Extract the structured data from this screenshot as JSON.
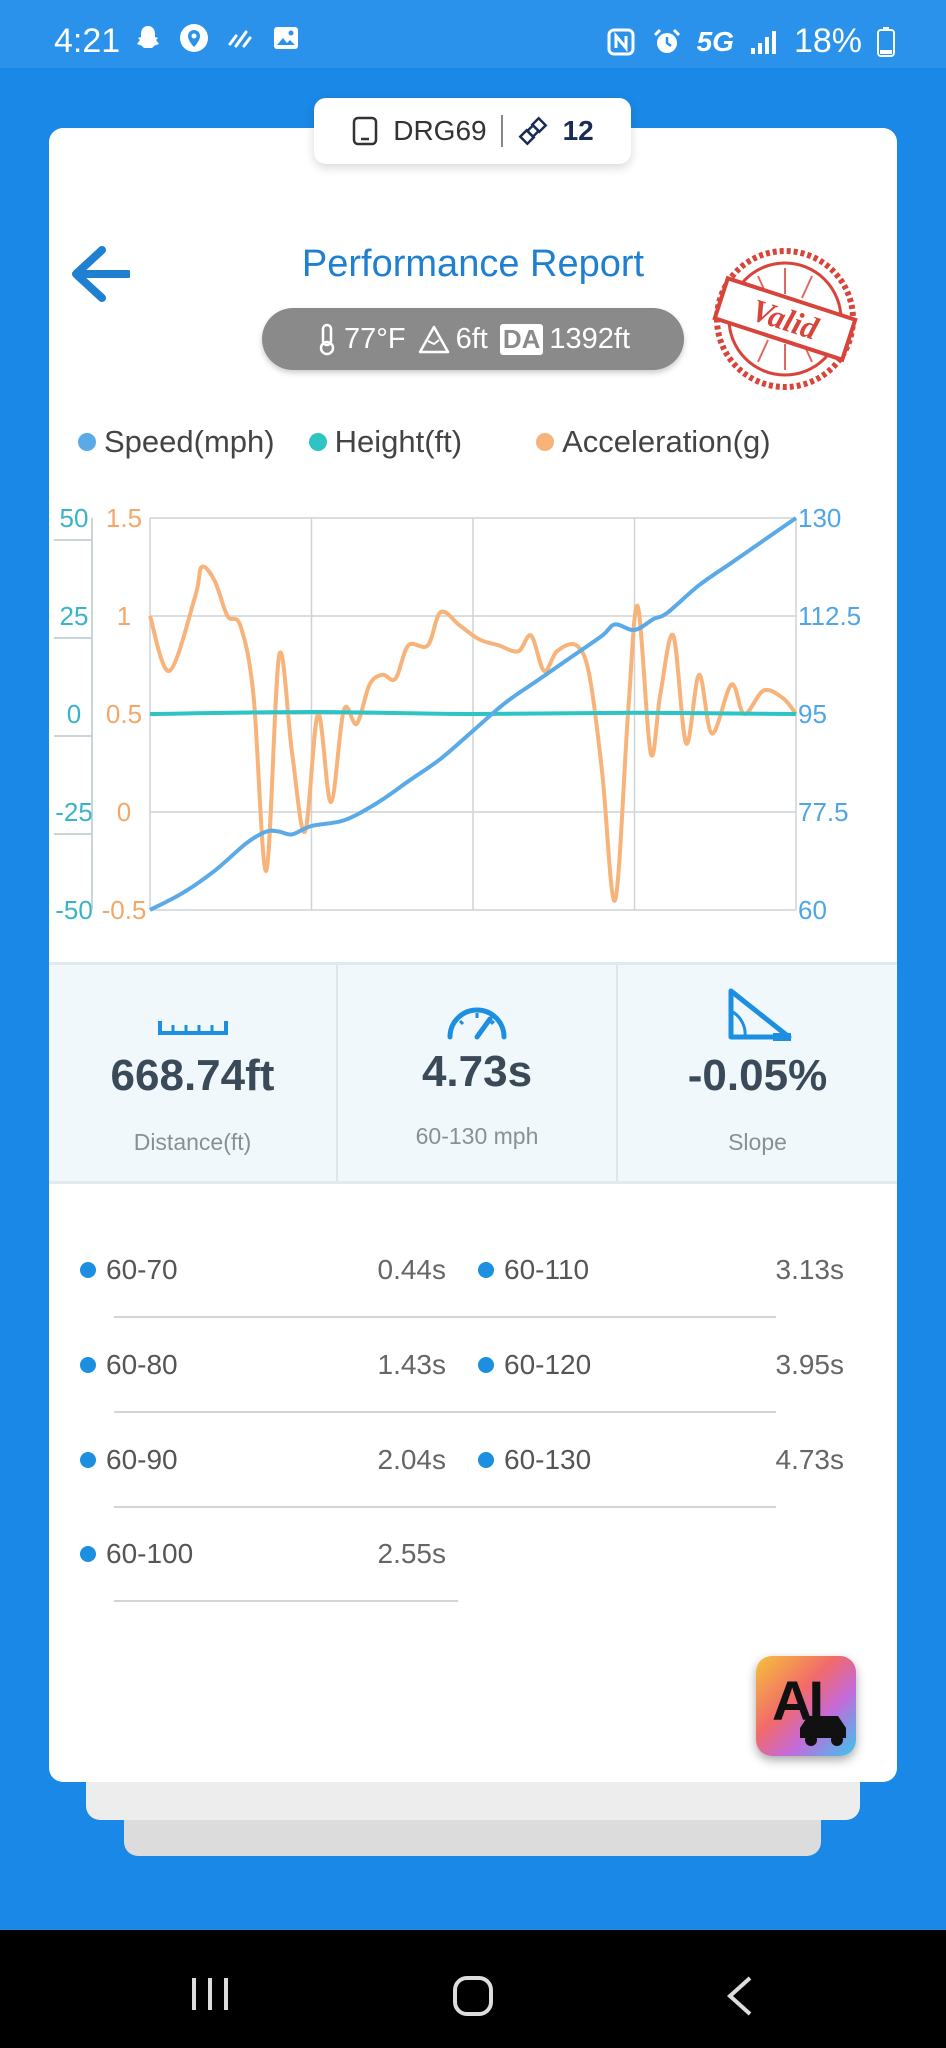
{
  "status_bar": {
    "time": "4:21",
    "network": "5G",
    "battery": "18%"
  },
  "device": {
    "name": "DRG69",
    "satellites": "12"
  },
  "header": {
    "title": "Performance Report",
    "stamp_text": "Valid"
  },
  "conditions": {
    "temperature": "77°F",
    "elevation": "6ft",
    "da_label": "DA",
    "density_altitude": "1392ft"
  },
  "legend": {
    "speed": "Speed(mph)",
    "height": "Height(ft)",
    "acceleration": "Acceleration(g)"
  },
  "colors": {
    "speed": "#5aaae8",
    "height": "#2ec4c4",
    "acceleration": "#f7b37a",
    "accent": "#1f7fd1"
  },
  "chart_data": {
    "type": "line",
    "axes": {
      "height_ticks": [
        "50",
        "25",
        "0",
        "-25",
        "-50"
      ],
      "accel_ticks": [
        "1.5",
        "1",
        "0.5",
        "0",
        "-0.5"
      ],
      "speed_ticks": [
        "130",
        "112.5",
        "95",
        "77.5",
        "60"
      ],
      "height_range": [
        -50,
        50
      ],
      "accel_range": [
        -0.5,
        1.5
      ],
      "speed_range": [
        60,
        130
      ]
    },
    "grid": true,
    "series": [
      {
        "name": "Speed(mph)",
        "axis": "speed",
        "values": [
          [
            0,
            60
          ],
          [
            0.05,
            63
          ],
          [
            0.1,
            67
          ],
          [
            0.15,
            72
          ],
          [
            0.18,
            74
          ],
          [
            0.2,
            74
          ],
          [
            0.22,
            73.5
          ],
          [
            0.25,
            75
          ],
          [
            0.3,
            76
          ],
          [
            0.35,
            79
          ],
          [
            0.4,
            83
          ],
          [
            0.45,
            87
          ],
          [
            0.5,
            92
          ],
          [
            0.55,
            97
          ],
          [
            0.6,
            101
          ],
          [
            0.65,
            105
          ],
          [
            0.7,
            109
          ],
          [
            0.72,
            111
          ],
          [
            0.75,
            110
          ],
          [
            0.78,
            112
          ],
          [
            0.8,
            113
          ],
          [
            0.85,
            118
          ],
          [
            0.9,
            122
          ],
          [
            0.95,
            126
          ],
          [
            1,
            130
          ]
        ]
      },
      {
        "name": "Height(ft)",
        "axis": "height",
        "values": [
          [
            0,
            0
          ],
          [
            0.25,
            0.5
          ],
          [
            0.5,
            0
          ],
          [
            0.75,
            0.3
          ],
          [
            1,
            0
          ]
        ]
      },
      {
        "name": "Acceleration(g)",
        "axis": "acceleration",
        "values": [
          [
            0,
            1
          ],
          [
            0.03,
            0.72
          ],
          [
            0.07,
            1.1
          ],
          [
            0.08,
            1.25
          ],
          [
            0.1,
            1.18
          ],
          [
            0.12,
            1
          ],
          [
            0.14,
            0.95
          ],
          [
            0.16,
            0.6
          ],
          [
            0.18,
            -0.3
          ],
          [
            0.2,
            0.8
          ],
          [
            0.22,
            0.3
          ],
          [
            0.24,
            -0.1
          ],
          [
            0.26,
            0.5
          ],
          [
            0.28,
            0.05
          ],
          [
            0.3,
            0.52
          ],
          [
            0.32,
            0.45
          ],
          [
            0.34,
            0.65
          ],
          [
            0.36,
            0.7
          ],
          [
            0.38,
            0.68
          ],
          [
            0.4,
            0.85
          ],
          [
            0.43,
            0.85
          ],
          [
            0.45,
            1.02
          ],
          [
            0.48,
            0.95
          ],
          [
            0.51,
            0.88
          ],
          [
            0.54,
            0.85
          ],
          [
            0.57,
            0.82
          ],
          [
            0.59,
            0.9
          ],
          [
            0.61,
            0.72
          ],
          [
            0.63,
            0.82
          ],
          [
            0.66,
            0.85
          ],
          [
            0.68,
            0.7
          ],
          [
            0.7,
            0.2
          ],
          [
            0.72,
            -0.45
          ],
          [
            0.74,
            0.5
          ],
          [
            0.755,
            1.05
          ],
          [
            0.775,
            0.3
          ],
          [
            0.79,
            0.6
          ],
          [
            0.81,
            0.9
          ],
          [
            0.83,
            0.35
          ],
          [
            0.85,
            0.7
          ],
          [
            0.87,
            0.4
          ],
          [
            0.9,
            0.65
          ],
          [
            0.92,
            0.5
          ],
          [
            0.95,
            0.62
          ],
          [
            0.98,
            0.58
          ],
          [
            1,
            0.5
          ]
        ]
      }
    ]
  },
  "stats": {
    "distance_value": "668.74ft",
    "distance_label": "Distance(ft)",
    "time_value": "4.73s",
    "time_label": "60-130 mph",
    "slope_value": "-0.05%",
    "slope_label": "Slope"
  },
  "splits": [
    {
      "range": "60-70",
      "time": "0.44s"
    },
    {
      "range": "60-80",
      "time": "1.43s"
    },
    {
      "range": "60-90",
      "time": "2.04s"
    },
    {
      "range": "60-100",
      "time": "2.55s"
    },
    {
      "range": "60-110",
      "time": "3.13s"
    },
    {
      "range": "60-120",
      "time": "3.95s"
    },
    {
      "range": "60-130",
      "time": "4.73s"
    }
  ],
  "ai_button": {
    "label": "AI"
  }
}
